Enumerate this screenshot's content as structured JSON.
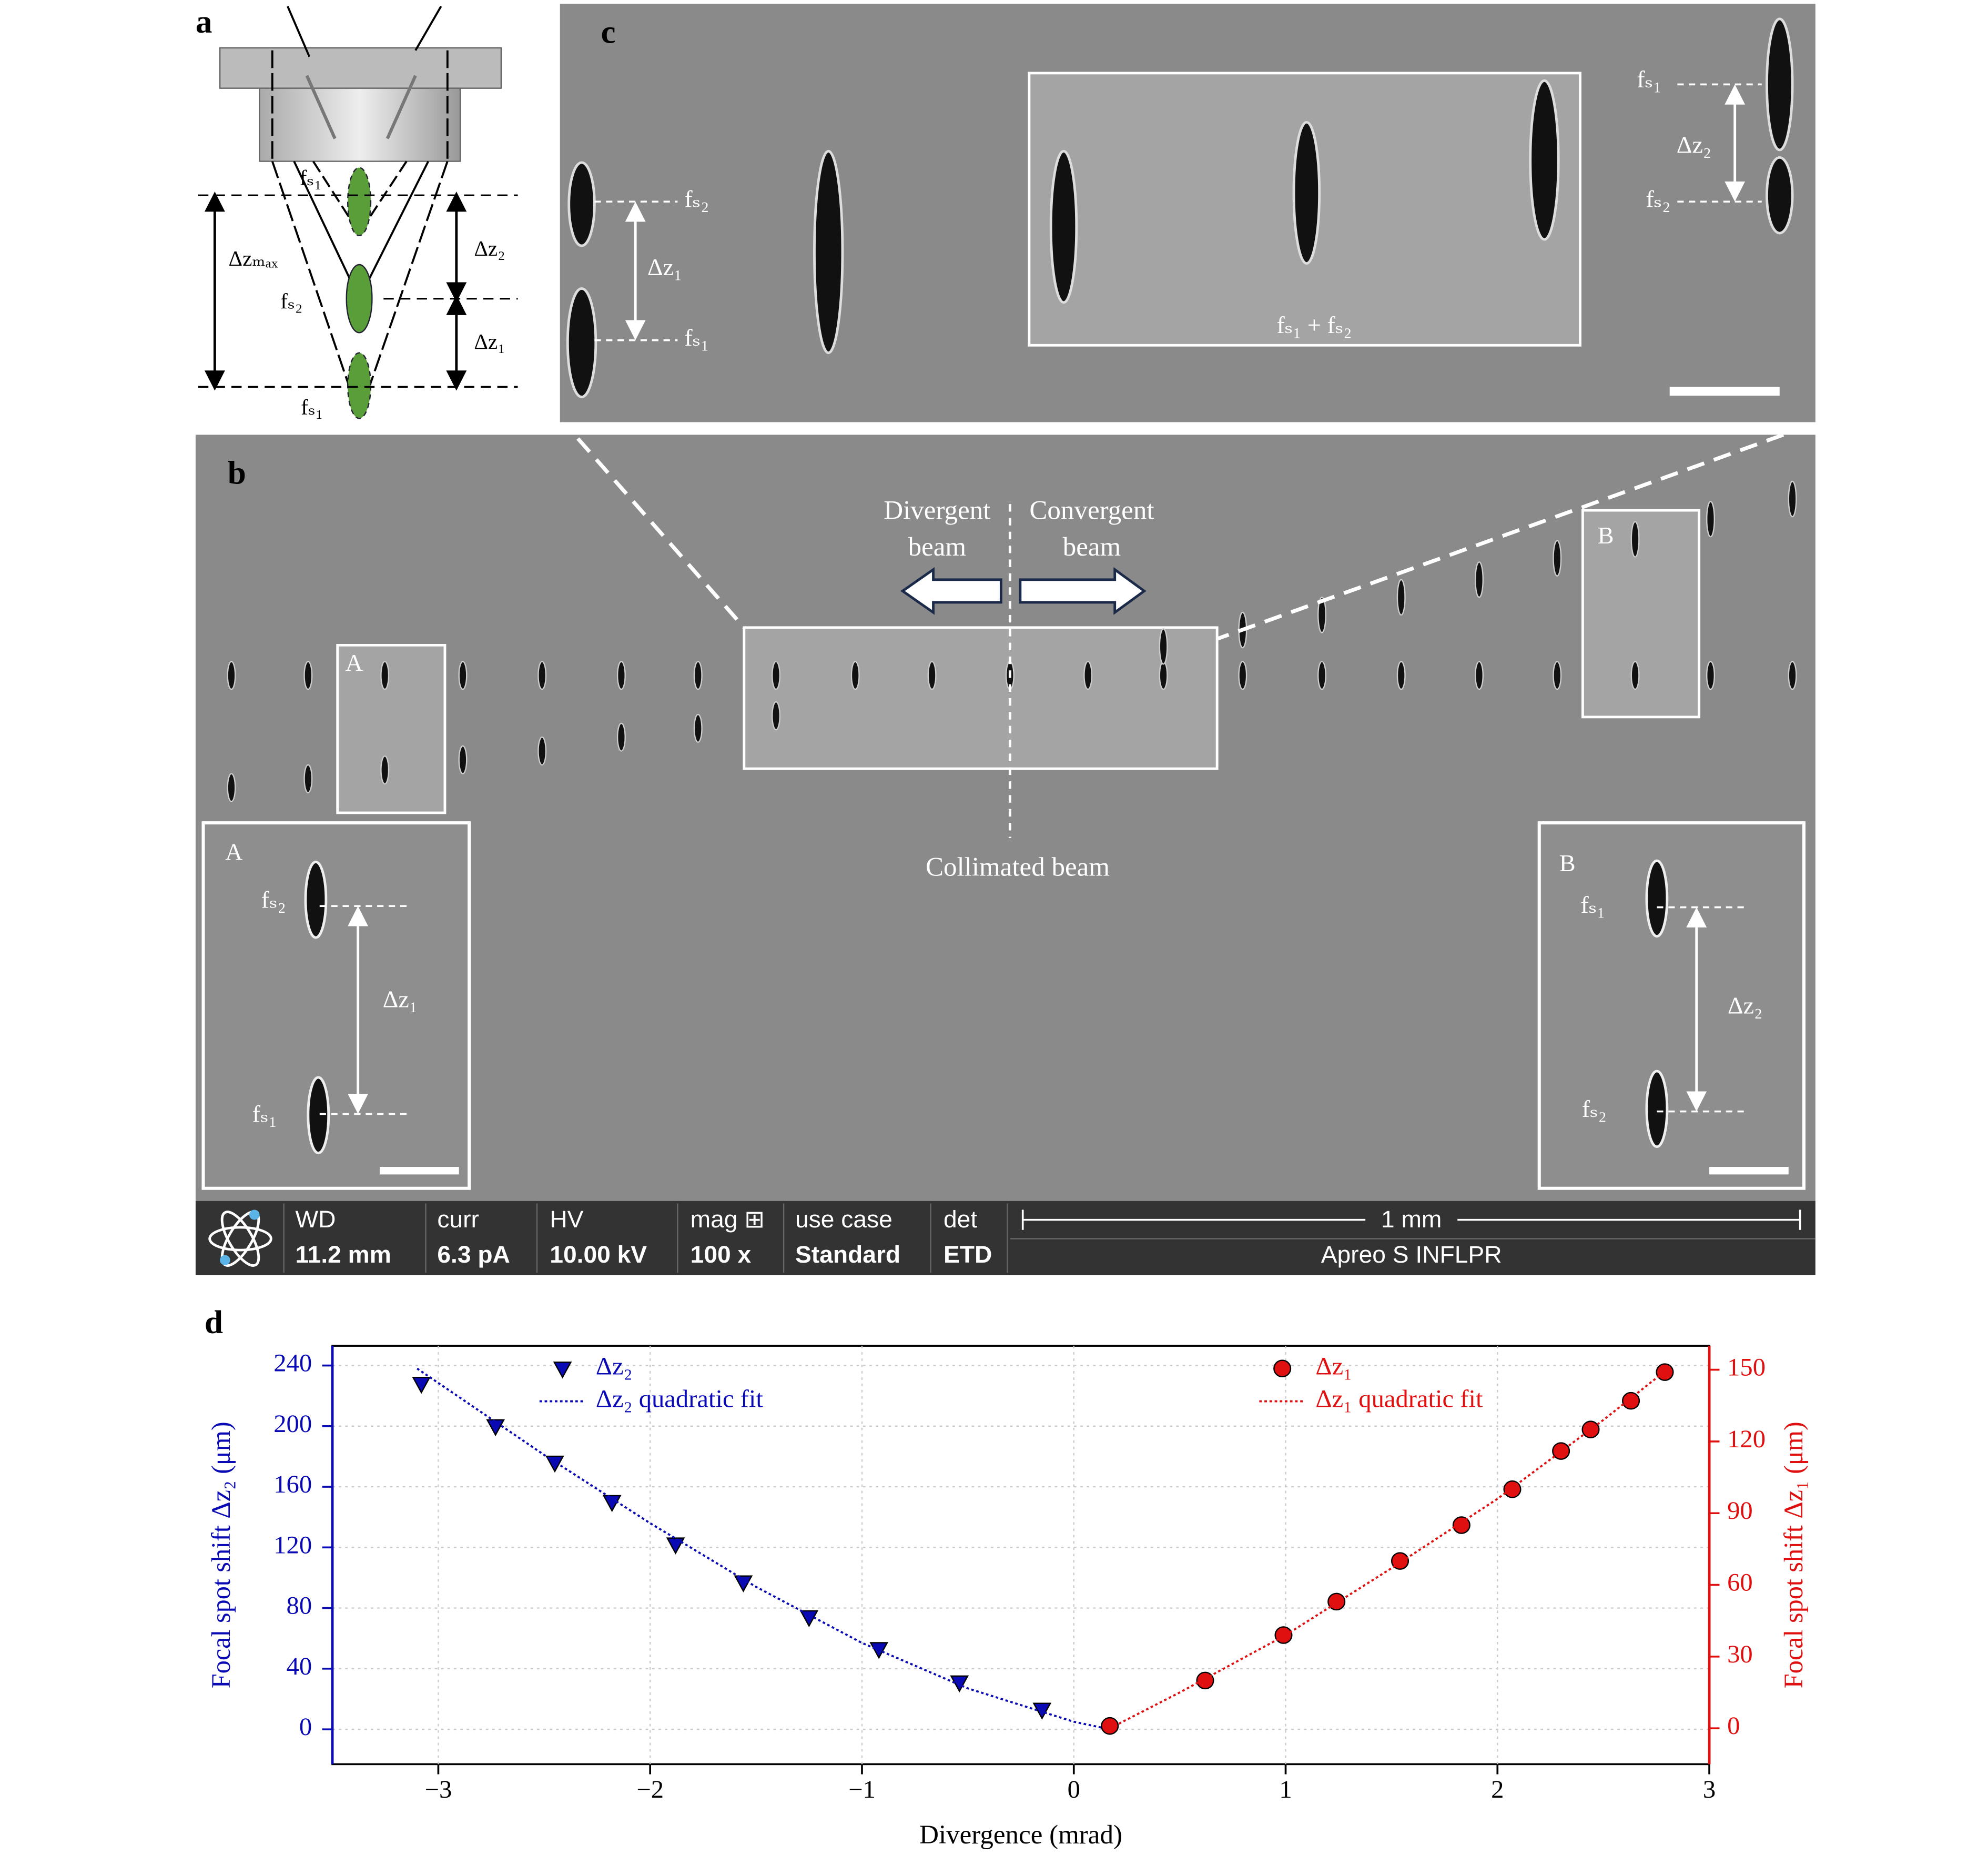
{
  "panel_labels": [
    "a",
    "b",
    "c",
    "d"
  ],
  "panel_a": [
    "fₛ₁",
    "Δzₘₐₓ",
    "fₛ₂",
    "Δz₂",
    "Δz₁",
    "fₛ₁"
  ],
  "panel_c": [
    "fₛ₂",
    "Δz₁",
    "fₛ₁",
    "fₛ₁ + fₛ₂",
    "fₛ₁",
    "Δz₂",
    "fₛ₂"
  ],
  "panel_b": {
    "divergent": [
      "Divergent",
      "beam"
    ],
    "convergent": [
      "Convergent",
      "beam"
    ],
    "collimated": "Collimated beam",
    "box_labels": [
      "A",
      "B"
    ],
    "inset_a": [
      "A",
      "fₛ₂",
      "Δz₁",
      "fₛ₁"
    ],
    "inset_b": [
      "B",
      "fₛ₁",
      "Δz₂",
      "fₛ₂"
    ]
  },
  "info_bar": {
    "headers": [
      "WD",
      "curr",
      "HV",
      "mag ⊞",
      "use case",
      "det"
    ],
    "values": [
      "11.2 mm",
      "6.3 pA",
      "10.00 kV",
      "100 x",
      "Standard",
      "ETD"
    ],
    "scale": "1 mm",
    "instrument": "Apreo S INFLPR"
  },
  "chart_data": {
    "type": "scatter",
    "xlabel": "Divergence (mrad)",
    "ylabel": "Focal spot shift Δz₂ (μm)",
    "y2label": "Focal spot shift Δz₁ (μm)",
    "xlim": [
      -3.5,
      3
    ],
    "xticks": [
      {
        "value": -3,
        "label": "−3"
      },
      {
        "value": -2,
        "label": "−2"
      },
      {
        "value": -1,
        "label": "−1"
      },
      0,
      1,
      2,
      3
    ],
    "ylim": [
      -23,
      253
    ],
    "yticks": [
      0,
      40,
      80,
      120,
      160,
      200,
      240
    ],
    "y2lim": [
      -15,
      160
    ],
    "y2ticks": [
      0,
      30,
      60,
      90,
      120,
      150
    ],
    "grid": true,
    "series": [
      {
        "name": "Δz₂",
        "color": "#0a0ab4",
        "marker": "triangle-down",
        "axis": "y",
        "x": [
          -3.08,
          -2.73,
          -2.45,
          -2.18,
          -1.88,
          -1.56,
          -1.25,
          -0.92,
          -0.54,
          -0.15
        ],
        "values": [
          228,
          200,
          176,
          150,
          122,
          97,
          74,
          53,
          31,
          13
        ]
      },
      {
        "name": "Δz₂ quadratic fit",
        "color": "#0a0ab4",
        "line": "dotted",
        "axis": "y",
        "x": [
          -3.1,
          -2.5,
          -2,
          -1.5,
          -1,
          -0.5,
          0,
          0.17
        ],
        "values": [
          238,
          181,
          136,
          94,
          57,
          27,
          5,
          0
        ]
      },
      {
        "name": "Δz₁",
        "color": "#e01010",
        "marker": "circle",
        "axis": "y2",
        "x": [
          0.17,
          0.62,
          0.99,
          1.24,
          1.54,
          1.83,
          2.07,
          2.3,
          2.44,
          2.63,
          2.79
        ],
        "values": [
          1,
          20,
          39,
          53,
          70,
          85,
          100,
          116,
          125,
          137,
          149
        ]
      },
      {
        "name": "Δz₁ quadratic fit",
        "color": "#e01010",
        "line": "dotted",
        "axis": "y2",
        "x": [
          0.17,
          0.5,
          1,
          1.5,
          2,
          2.5,
          2.8
        ],
        "values": [
          0,
          15,
          39,
          67,
          96,
          129,
          150
        ]
      }
    ]
  }
}
